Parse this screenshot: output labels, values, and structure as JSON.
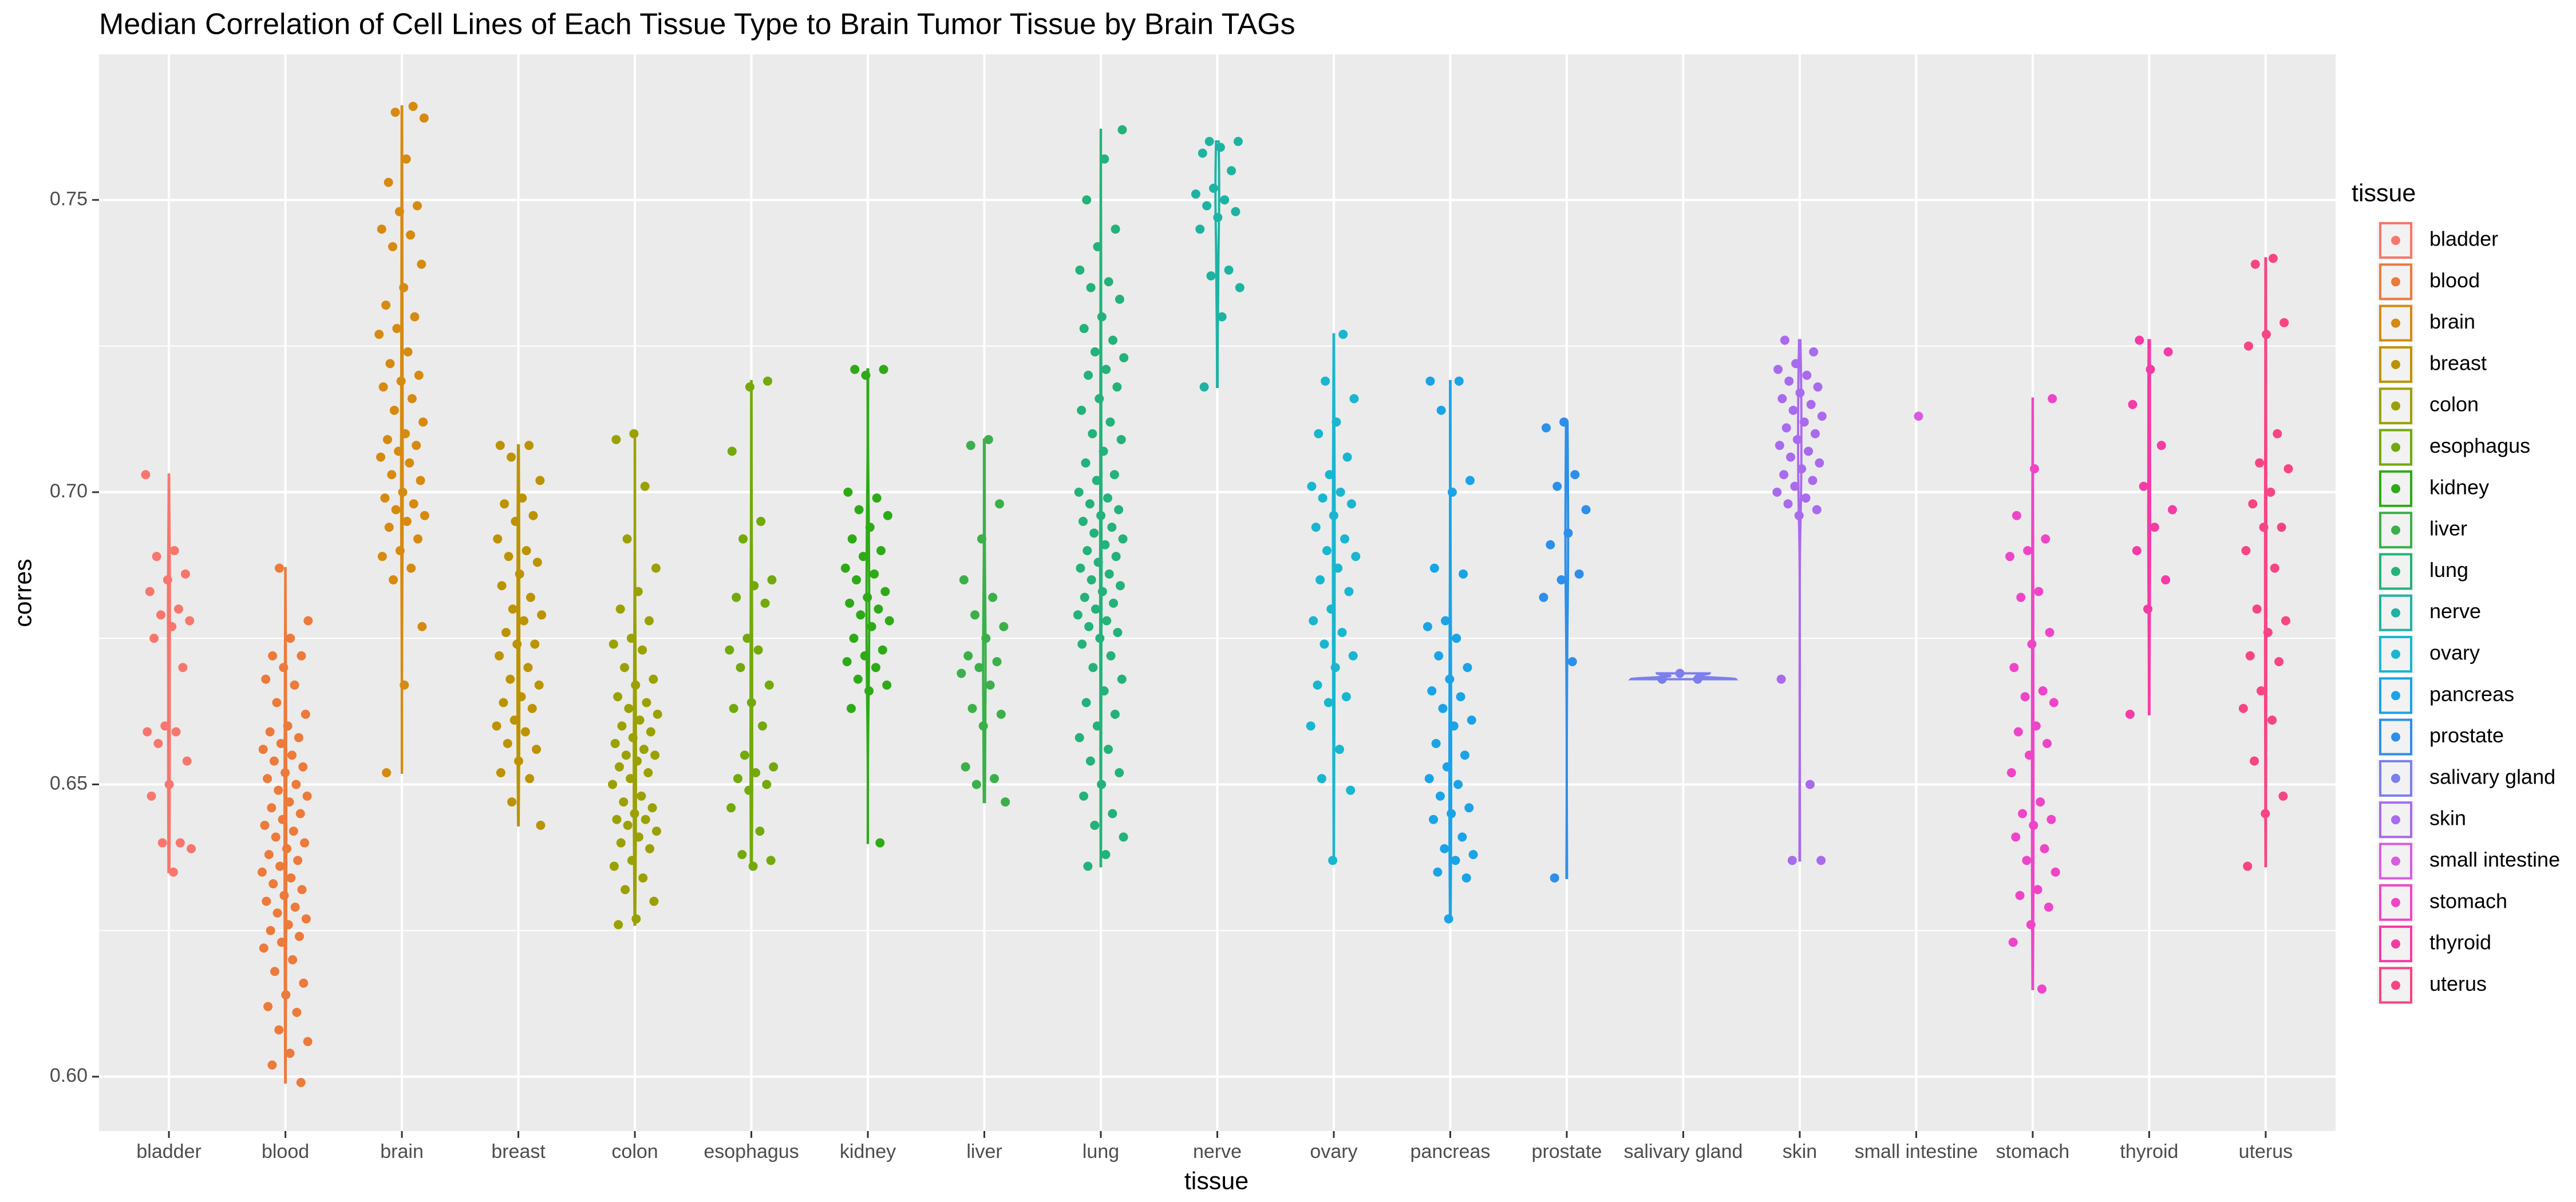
{
  "chart_data": {
    "type": "violin",
    "title": "Median Correlation of Cell Lines of Each Tissue Type to Brain Tumor Tissue by Brain TAGs",
    "x_label": "tissue",
    "y_label": "corres",
    "legend_title": "tissue",
    "categories": [
      "bladder",
      "blood",
      "brain",
      "breast",
      "colon",
      "esophagus",
      "kidney",
      "liver",
      "lung",
      "nerve",
      "ovary",
      "pancreas",
      "prostate",
      "salivary gland",
      "skin",
      "small intestine",
      "stomach",
      "thyroid",
      "uterus"
    ],
    "ylim": [
      0.5907,
      0.7749
    ],
    "yticks": [
      {
        "value": 0.6,
        "label": "0.60"
      },
      0.65,
      {
        "value": 0.7,
        "label": "0.70"
      },
      0.75
    ],
    "grid": true,
    "legend": "right",
    "series": [
      {
        "name": "bladder",
        "color": "#F8766D",
        "values": [
          0.703,
          0.69,
          0.689,
          0.686,
          0.685,
          0.683,
          0.68,
          0.679,
          0.678,
          0.677,
          0.675,
          0.67,
          0.66,
          0.659,
          0.659,
          0.657,
          0.654,
          0.65,
          0.648,
          0.64,
          0.64,
          0.639,
          0.635
        ]
      },
      {
        "name": "blood",
        "color": "#EC7A3A",
        "values": [
          0.687,
          0.678,
          0.675,
          0.672,
          0.672,
          0.67,
          0.668,
          0.667,
          0.664,
          0.662,
          0.66,
          0.659,
          0.658,
          0.657,
          0.656,
          0.655,
          0.654,
          0.653,
          0.652,
          0.651,
          0.65,
          0.649,
          0.648,
          0.647,
          0.646,
          0.645,
          0.644,
          0.643,
          0.642,
          0.641,
          0.64,
          0.639,
          0.638,
          0.637,
          0.636,
          0.635,
          0.634,
          0.633,
          0.632,
          0.631,
          0.63,
          0.629,
          0.628,
          0.627,
          0.626,
          0.625,
          0.624,
          0.623,
          0.622,
          0.62,
          0.618,
          0.616,
          0.614,
          0.612,
          0.611,
          0.608,
          0.606,
          0.604,
          0.602,
          0.599
        ]
      },
      {
        "name": "brain",
        "color": "#D68A10",
        "values": [
          0.766,
          0.765,
          0.764,
          0.757,
          0.753,
          0.749,
          0.748,
          0.745,
          0.744,
          0.742,
          0.739,
          0.735,
          0.732,
          0.73,
          0.728,
          0.727,
          0.724,
          0.722,
          0.72,
          0.719,
          0.718,
          0.716,
          0.714,
          0.712,
          0.71,
          0.709,
          0.708,
          0.707,
          0.706,
          0.705,
          0.703,
          0.702,
          0.7,
          0.699,
          0.698,
          0.697,
          0.696,
          0.695,
          0.694,
          0.692,
          0.69,
          0.689,
          0.687,
          0.685,
          0.677,
          0.667,
          0.652
        ]
      },
      {
        "name": "breast",
        "color": "#BC9300",
        "values": [
          0.708,
          0.708,
          0.706,
          0.702,
          0.699,
          0.698,
          0.696,
          0.695,
          0.692,
          0.69,
          0.689,
          0.688,
          0.686,
          0.684,
          0.682,
          0.68,
          0.679,
          0.678,
          0.676,
          0.674,
          0.674,
          0.672,
          0.67,
          0.668,
          0.667,
          0.665,
          0.664,
          0.663,
          0.661,
          0.66,
          0.659,
          0.657,
          0.656,
          0.654,
          0.652,
          0.651,
          0.647,
          0.643
        ]
      },
      {
        "name": "colon",
        "color": "#9AA100",
        "values": [
          0.71,
          0.709,
          0.701,
          0.692,
          0.687,
          0.683,
          0.68,
          0.678,
          0.675,
          0.674,
          0.673,
          0.67,
          0.668,
          0.667,
          0.665,
          0.664,
          0.663,
          0.662,
          0.661,
          0.66,
          0.659,
          0.658,
          0.657,
          0.656,
          0.655,
          0.655,
          0.654,
          0.653,
          0.652,
          0.651,
          0.65,
          0.648,
          0.647,
          0.646,
          0.645,
          0.644,
          0.644,
          0.643,
          0.642,
          0.641,
          0.64,
          0.639,
          0.637,
          0.636,
          0.634,
          0.632,
          0.63,
          0.627,
          0.626
        ]
      },
      {
        "name": "esophagus",
        "color": "#73A90A",
        "values": [
          0.719,
          0.718,
          0.707,
          0.695,
          0.692,
          0.685,
          0.684,
          0.682,
          0.681,
          0.675,
          0.673,
          0.673,
          0.67,
          0.667,
          0.664,
          0.663,
          0.66,
          0.655,
          0.653,
          0.652,
          0.651,
          0.65,
          0.649,
          0.646,
          0.642,
          0.638,
          0.637,
          0.636
        ]
      },
      {
        "name": "kidney",
        "color": "#2EAA17",
        "values": [
          0.721,
          0.721,
          0.72,
          0.7,
          0.699,
          0.697,
          0.696,
          0.694,
          0.692,
          0.69,
          0.689,
          0.687,
          0.686,
          0.685,
          0.683,
          0.682,
          0.681,
          0.68,
          0.679,
          0.678,
          0.677,
          0.675,
          0.673,
          0.672,
          0.671,
          0.67,
          0.668,
          0.667,
          0.666,
          0.663,
          0.64
        ]
      },
      {
        "name": "liver",
        "color": "#3BB04A",
        "values": [
          0.709,
          0.708,
          0.698,
          0.692,
          0.685,
          0.682,
          0.679,
          0.677,
          0.675,
          0.672,
          0.671,
          0.67,
          0.669,
          0.667,
          0.663,
          0.662,
          0.66,
          0.653,
          0.651,
          0.65,
          0.647
        ]
      },
      {
        "name": "lung",
        "color": "#22B27A",
        "values": [
          0.762,
          0.757,
          0.75,
          0.745,
          0.742,
          0.738,
          0.736,
          0.735,
          0.733,
          0.73,
          0.728,
          0.726,
          0.724,
          0.723,
          0.721,
          0.72,
          0.718,
          0.716,
          0.714,
          0.712,
          0.71,
          0.709,
          0.707,
          0.705,
          0.703,
          0.702,
          0.7,
          0.699,
          0.698,
          0.697,
          0.696,
          0.695,
          0.694,
          0.693,
          0.692,
          0.691,
          0.69,
          0.689,
          0.688,
          0.687,
          0.686,
          0.685,
          0.684,
          0.683,
          0.682,
          0.681,
          0.68,
          0.679,
          0.678,
          0.677,
          0.676,
          0.675,
          0.674,
          0.672,
          0.67,
          0.668,
          0.666,
          0.664,
          0.662,
          0.66,
          0.658,
          0.656,
          0.654,
          0.652,
          0.65,
          0.648,
          0.645,
          0.643,
          0.641,
          0.638,
          0.636
        ]
      },
      {
        "name": "nerve",
        "color": "#1DB3A3",
        "values": [
          0.76,
          0.76,
          0.759,
          0.758,
          0.755,
          0.752,
          0.751,
          0.75,
          0.749,
          0.748,
          0.747,
          0.745,
          0.738,
          0.737,
          0.735,
          0.73,
          0.718
        ]
      },
      {
        "name": "ovary",
        "color": "#18B6CF",
        "values": [
          0.727,
          0.719,
          0.716,
          0.712,
          0.71,
          0.706,
          0.703,
          0.701,
          0.7,
          0.699,
          0.698,
          0.696,
          0.694,
          0.692,
          0.69,
          0.689,
          0.687,
          0.685,
          0.683,
          0.68,
          0.678,
          0.676,
          0.674,
          0.672,
          0.67,
          0.667,
          0.665,
          0.664,
          0.66,
          0.656,
          0.651,
          0.649,
          0.637
        ]
      },
      {
        "name": "pancreas",
        "color": "#1AA3E6",
        "values": [
          0.719,
          0.719,
          0.714,
          0.702,
          0.7,
          0.687,
          0.686,
          0.678,
          0.677,
          0.675,
          0.672,
          0.67,
          0.668,
          0.666,
          0.665,
          0.663,
          0.661,
          0.66,
          0.657,
          0.655,
          0.653,
          0.651,
          0.65,
          0.648,
          0.646,
          0.645,
          0.644,
          0.641,
          0.639,
          0.638,
          0.637,
          0.635,
          0.634,
          0.627
        ]
      },
      {
        "name": "prostate",
        "color": "#2D8FEA",
        "values": [
          0.712,
          0.711,
          0.703,
          0.701,
          0.697,
          0.693,
          0.691,
          0.686,
          0.685,
          0.682,
          0.671,
          0.634
        ]
      },
      {
        "name": "salivary gland",
        "color": "#7B7EEE",
        "values": [
          0.668,
          0.669,
          0.668
        ]
      },
      {
        "name": "skin",
        "color": "#A96AEE",
        "values": [
          0.726,
          0.724,
          0.722,
          0.721,
          0.72,
          0.719,
          0.718,
          0.717,
          0.716,
          0.715,
          0.714,
          0.713,
          0.712,
          0.711,
          0.71,
          0.709,
          0.708,
          0.707,
          0.706,
          0.705,
          0.704,
          0.703,
          0.702,
          0.701,
          0.7,
          0.699,
          0.698,
          0.697,
          0.696,
          0.668,
          0.65,
          0.637,
          0.637
        ]
      },
      {
        "name": "small intestine",
        "color": "#D85CE0",
        "values": [
          0.713
        ]
      },
      {
        "name": "stomach",
        "color": "#EE45C8",
        "values": [
          0.716,
          0.704,
          0.696,
          0.692,
          0.69,
          0.689,
          0.683,
          0.682,
          0.676,
          0.674,
          0.67,
          0.666,
          0.665,
          0.664,
          0.66,
          0.659,
          0.657,
          0.655,
          0.652,
          0.647,
          0.645,
          0.644,
          0.643,
          0.641,
          0.639,
          0.637,
          0.635,
          0.632,
          0.631,
          0.629,
          0.626,
          0.623,
          0.615
        ]
      },
      {
        "name": "thyroid",
        "color": "#F53BA6",
        "values": [
          0.726,
          0.724,
          0.721,
          0.715,
          0.708,
          0.701,
          0.697,
          0.694,
          0.69,
          0.685,
          0.68,
          0.662
        ]
      },
      {
        "name": "uterus",
        "color": "#F74485",
        "values": [
          0.74,
          0.739,
          0.729,
          0.727,
          0.725,
          0.71,
          0.705,
          0.704,
          0.7,
          0.698,
          0.694,
          0.694,
          0.69,
          0.687,
          0.68,
          0.678,
          0.676,
          0.672,
          0.671,
          0.666,
          0.663,
          0.661,
          0.654,
          0.648,
          0.645,
          0.636
        ]
      }
    ]
  }
}
